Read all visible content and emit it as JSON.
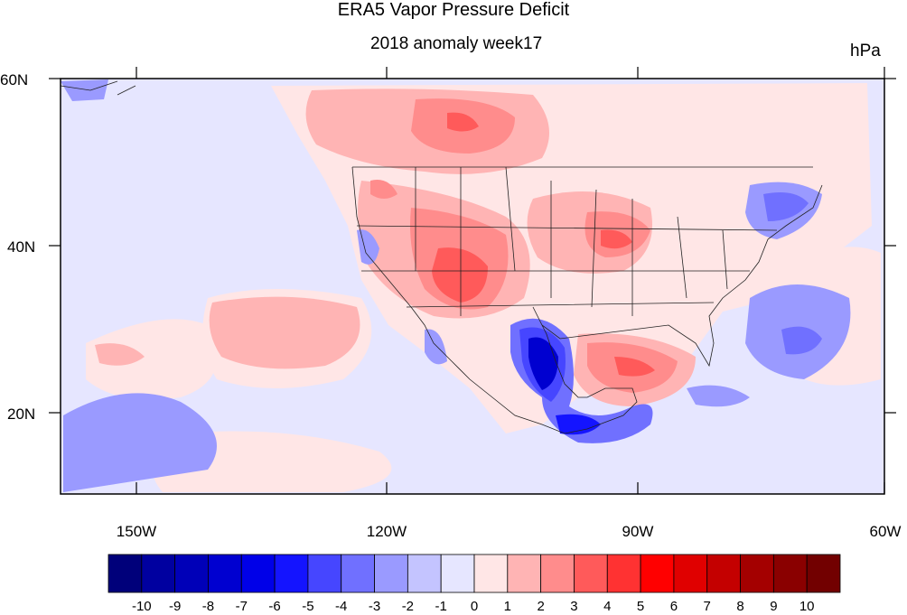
{
  "title": "ERA5 Vapor Pressure Deficit",
  "subtitle": "2018 anomaly week17",
  "units": "hPa",
  "axes": {
    "lat_labels": [
      "60N",
      "40N",
      "20N"
    ],
    "lon_labels": [
      "150W",
      "120W",
      "90W",
      "60W"
    ]
  },
  "colorbar": {
    "labels": [
      "-10",
      "-9",
      "-8",
      "-7",
      "-6",
      "-5",
      "-4",
      "-3",
      "-2",
      "-1",
      "0",
      "1",
      "2",
      "3",
      "4",
      "5",
      "6",
      "7",
      "8",
      "9",
      "10"
    ],
    "colors": [
      "#00007a",
      "#0000a0",
      "#0000b8",
      "#0000d0",
      "#0000e8",
      "#1414ff",
      "#4646ff",
      "#7070ff",
      "#9a9aff",
      "#c4c4ff",
      "#e6e6ff",
      "#ffe6e6",
      "#ffb4b4",
      "#ff8c8c",
      "#ff5a5a",
      "#ff3232",
      "#ff0000",
      "#e00000",
      "#c40000",
      "#a40000",
      "#8a0000",
      "#720000"
    ]
  },
  "colors": {
    "background_field": "#e6e6ff",
    "positive_light": "#ffe6e6"
  }
}
